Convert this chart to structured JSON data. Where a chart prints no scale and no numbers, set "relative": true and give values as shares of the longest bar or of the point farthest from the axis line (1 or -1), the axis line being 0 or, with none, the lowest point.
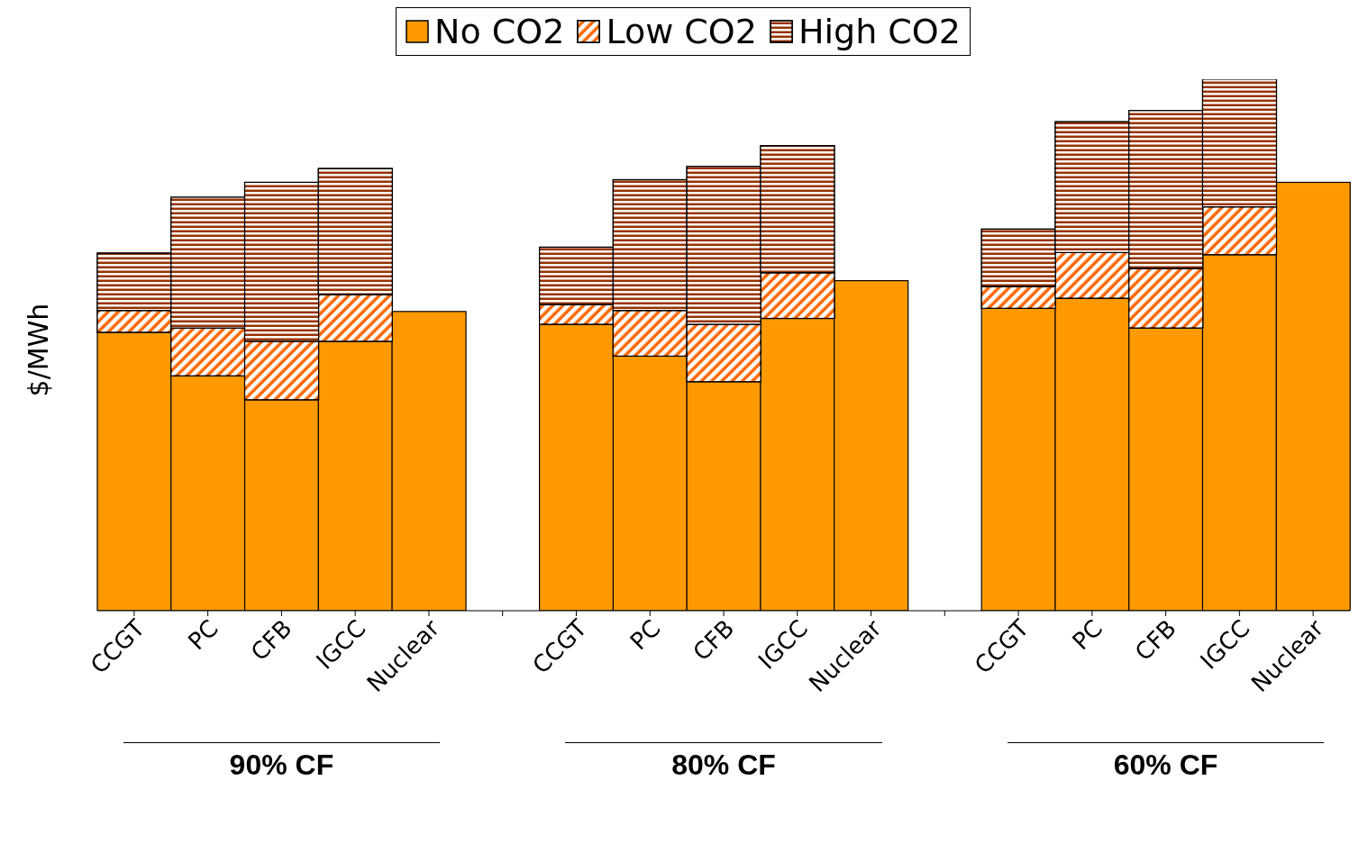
{
  "chart_data": {
    "type": "bar",
    "stacked": true,
    "relative": true,
    "ylabel": "$/MWh",
    "legend": "top",
    "categories": [
      "CCGT",
      "PC",
      "CFB",
      "IGCC",
      "Nuclear",
      null,
      "CCGT",
      "PC",
      "CFB",
      "IGCC",
      "Nuclear",
      null,
      "CCGT",
      "PC",
      "CFB",
      "IGCC",
      "Nuclear"
    ],
    "series": [
      {
        "name": "No CO2",
        "color": "#ff9900",
        "values": [
          0.524,
          0.442,
          0.397,
          0.507,
          0.563,
          null,
          0.539,
          0.479,
          0.431,
          0.55,
          0.621,
          null,
          0.569,
          0.588,
          0.532,
          0.67,
          0.806
        ]
      },
      {
        "name": "Low CO2",
        "color": "#ff6600",
        "values": [
          0.041,
          0.09,
          0.11,
          0.088,
          null,
          null,
          0.037,
          0.086,
          0.108,
          0.086,
          null,
          null,
          0.041,
          0.086,
          0.112,
          0.09,
          null
        ]
      },
      {
        "name": "High CO2",
        "color": "#993300",
        "values": [
          0.108,
          0.246,
          0.299,
          0.237,
          null,
          null,
          0.108,
          0.246,
          0.297,
          0.239,
          null,
          null,
          0.108,
          0.246,
          0.297,
          0.24,
          null
        ]
      }
    ],
    "annotations": [
      "90% CF",
      "80% CF",
      "60% CF"
    ]
  }
}
